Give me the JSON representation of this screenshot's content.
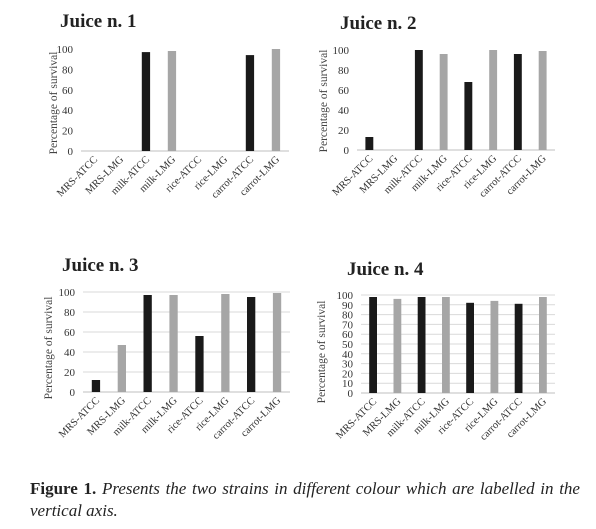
{
  "chart_data": [
    {
      "type": "bar",
      "title": "Juice n. 1",
      "ylabel": "Percentage of survival",
      "ylim": [
        0,
        100
      ],
      "yticks": [
        "0",
        "20",
        "40",
        "60",
        "80",
        "100"
      ],
      "categories": [
        "MRS-ATCC",
        "MRS-LMG",
        "milk-ATCC",
        "milk-LMG",
        "rice-ATCC",
        "rice-LMG",
        "carrot-ATCC",
        "carrot-LMG"
      ],
      "values": [
        0,
        0,
        97,
        98,
        0,
        0,
        94,
        100
      ],
      "colors": [
        "#1a1a1a",
        "#a6a6a6",
        "#1a1a1a",
        "#a6a6a6",
        "#1a1a1a",
        "#a6a6a6",
        "#1a1a1a",
        "#a6a6a6"
      ],
      "grid": false
    },
    {
      "type": "bar",
      "title": "Juice n. 2",
      "ylabel": "Percentage of survival",
      "ylim": [
        0,
        100
      ],
      "yticks": [
        "0",
        "20",
        "40",
        "60",
        "80",
        "100"
      ],
      "categories": [
        "MRS-ATCC",
        "MRS-LMG",
        "milk-ATCC",
        "milk-LMG",
        "rice-ATCC",
        "rice-LMG",
        "carrot-ATCC",
        "carrot-LMG"
      ],
      "values": [
        13,
        0,
        100,
        96,
        68,
        100,
        96,
        99
      ],
      "colors": [
        "#1a1a1a",
        "#a6a6a6",
        "#1a1a1a",
        "#a6a6a6",
        "#1a1a1a",
        "#a6a6a6",
        "#1a1a1a",
        "#a6a6a6"
      ],
      "grid": false
    },
    {
      "type": "bar",
      "title": "Juice n. 3",
      "ylabel": "Percentage of survival",
      "ylim": [
        0,
        100
      ],
      "yticks": [
        "0",
        "20",
        "40",
        "60",
        "80",
        "100"
      ],
      "categories": [
        "MRS-ATCC",
        "MRS-LMG",
        "milk-ATCC",
        "milk-LMG",
        "rice-ATCC",
        "rice-LMG",
        "carrot-ATCC",
        "carrot-LMG"
      ],
      "values": [
        12,
        47,
        97,
        97,
        56,
        98,
        95,
        99
      ],
      "colors": [
        "#1a1a1a",
        "#a6a6a6",
        "#1a1a1a",
        "#a6a6a6",
        "#1a1a1a",
        "#a6a6a6",
        "#1a1a1a",
        "#a6a6a6"
      ],
      "grid": true
    },
    {
      "type": "bar",
      "title": "Juice n. 4",
      "ylabel": "Percentage of survival",
      "ylim": [
        0,
        100
      ],
      "yticks": [
        "0",
        "10",
        "20",
        "30",
        "40",
        "50",
        "60",
        "70",
        "80",
        "90",
        "100"
      ],
      "categories": [
        "MRS-ATCC",
        "MRS-LMG",
        "milk-ATCC",
        "milk-LMG",
        "rice-ATCC",
        "rice-LMG",
        "carrot-ATCC",
        "carrot-LMG"
      ],
      "values": [
        98,
        96,
        98,
        98,
        92,
        94,
        91,
        98
      ],
      "colors": [
        "#1a1a1a",
        "#a6a6a6",
        "#1a1a1a",
        "#a6a6a6",
        "#1a1a1a",
        "#a6a6a6",
        "#1a1a1a",
        "#a6a6a6"
      ],
      "grid": true
    }
  ],
  "caption": {
    "lead": "Figure 1.",
    "text": "Presents the two strains in different colour which are labelled in the vertical axis."
  }
}
